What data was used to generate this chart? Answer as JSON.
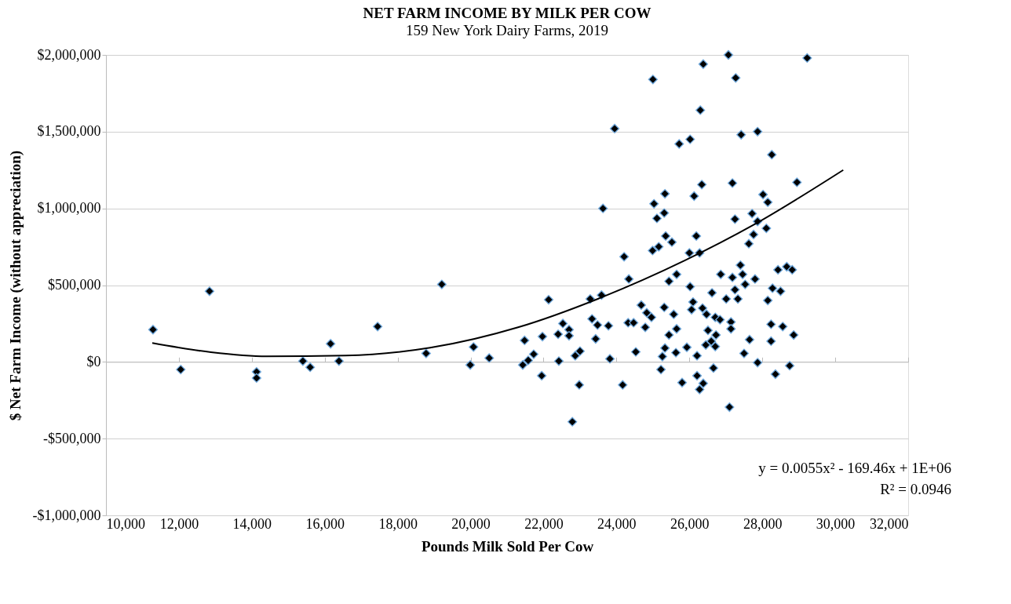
{
  "chart_data": {
    "type": "scatter",
    "title": "NET FARM INCOME BY MILK PER COW",
    "subtitle": "159 New York Dairy Farms, 2019",
    "xlabel": "Pounds Milk Sold Per Cow",
    "ylabel": "$ Net Farm Income (without appreciation)",
    "annotations": [
      "y = 0.0055x² - 169.46x + 1E+06",
      "R² = 0.0946"
    ],
    "xlim": [
      10000,
      32000
    ],
    "ylim": [
      -1000000,
      2000000
    ],
    "xticks": [
      {
        "value": 10000,
        "label": "10,000"
      },
      {
        "value": 12000,
        "label": "12,000"
      },
      {
        "value": 14000,
        "label": "14,000"
      },
      {
        "value": 16000,
        "label": "16,000"
      },
      {
        "value": 18000,
        "label": "18,000"
      },
      {
        "value": 20000,
        "label": "20,000"
      },
      {
        "value": 22000,
        "label": "22,000"
      },
      {
        "value": 24000,
        "label": "24,000"
      },
      {
        "value": 26000,
        "label": "26,000"
      },
      {
        "value": 28000,
        "label": "28,000"
      },
      {
        "value": 30000,
        "label": "30,000"
      },
      {
        "value": 32000,
        "label": "32,000"
      }
    ],
    "yticks": [
      {
        "value": -1000000,
        "label": "-$1,000,000"
      },
      {
        "value": -500000,
        "label": "-$500,000"
      },
      {
        "value": 0,
        "label": "$0"
      },
      {
        "value": 500000,
        "label": "$500,000"
      },
      {
        "value": 1000000,
        "label": "$1,000,000"
      },
      {
        "value": 1500000,
        "label": "$1,500,000"
      },
      {
        "value": 2000000,
        "label": "$2,000,000"
      }
    ],
    "grid": "y",
    "series": [
      {
        "marker": "diamond",
        "color": "#000000",
        "x": [
          11290,
          12050,
          12840,
          14130,
          14130,
          15400,
          15600,
          16160,
          16390,
          17450,
          18780,
          19210,
          19990,
          20080,
          20510,
          27070,
          29230,
          26380,
          25000,
          27270,
          26300,
          23950,
          27420,
          27870,
          25720,
          26020,
          28260,
          28950,
          27180,
          26340,
          25330,
          26130,
          28020,
          28150,
          23630,
          25030,
          25310,
          25110,
          27720,
          27250,
          27870,
          28110,
          27760,
          25350,
          25520,
          26190,
          27630,
          24990,
          25160,
          26000,
          26280,
          24210,
          24340,
          27400,
          26860,
          27180,
          27460,
          27800,
          27530,
          25650,
          25440,
          26020,
          26620,
          27010,
          27330,
          27250,
          28430,
          28670,
          28820,
          28280,
          28500,
          28150,
          22140,
          23280,
          23590,
          24680,
          25310,
          24830,
          24960,
          25570,
          26100,
          26060,
          26360,
          26470,
          26710,
          26840,
          27140,
          27140,
          26510,
          26730,
          26450,
          26600,
          26710,
          25650,
          25440,
          25330,
          25260,
          25630,
          25930,
          26210,
          27650,
          27500,
          28240,
          28560,
          28860,
          28240,
          27870,
          28360,
          28750,
          24320,
          24470,
          24790,
          24530,
          23820,
          24170,
          23330,
          23480,
          23780,
          23430,
          22530,
          22700,
          22400,
          22700,
          21970,
          21480,
          23000,
          22870,
          22420,
          21730,
          21580,
          21430,
          21950,
          22980,
          22790,
          25220,
          25800,
          26210,
          26280,
          26380,
          26660,
          27100
        ],
        "values": [
          210000,
          -50000,
          460000,
          -65000,
          -105000,
          5000,
          -35000,
          118000,
          5000,
          230000,
          55000,
          505000,
          -20000,
          97000,
          25000,
          2000000,
          1980000,
          1940000,
          1840000,
          1850000,
          1640000,
          1520000,
          1480000,
          1500000,
          1420000,
          1450000,
          1350000,
          1170000,
          1165000,
          1155000,
          1095000,
          1080000,
          1090000,
          1040000,
          1000000,
          1030000,
          970000,
          935000,
          966000,
          930000,
          915000,
          870000,
          830000,
          820000,
          780000,
          820000,
          770000,
          725000,
          750000,
          710000,
          710000,
          685000,
          540000,
          630000,
          570000,
          550000,
          570000,
          540000,
          505000,
          570000,
          525000,
          490000,
          450000,
          410000,
          410000,
          470000,
          600000,
          620000,
          600000,
          480000,
          460000,
          400000,
          405000,
          410000,
          435000,
          370000,
          355000,
          320000,
          290000,
          310000,
          390000,
          340000,
          350000,
          310000,
          290000,
          275000,
          260000,
          215000,
          205000,
          175000,
          110000,
          135000,
          100000,
          215000,
          175000,
          90000,
          35000,
          60000,
          95000,
          40000,
          145000,
          55000,
          245000,
          230000,
          175000,
          135000,
          -5000,
          -80000,
          -25000,
          255000,
          255000,
          225000,
          65000,
          20000,
          -150000,
          280000,
          240000,
          235000,
          150000,
          250000,
          210000,
          180000,
          170000,
          165000,
          140000,
          70000,
          40000,
          5000,
          50000,
          10000,
          -20000,
          -90000,
          -150000,
          -390000,
          -50000,
          -135000,
          -90000,
          -180000,
          -140000,
          -40000,
          -295000
        ]
      },
      {
        "type": "line",
        "marker": "none",
        "color": "#000000",
        "x": [
          11270,
          12880,
          14410,
          16570,
          18890,
          21300,
          23590,
          25870,
          27740,
          30220
        ],
        "values": [
          123000,
          63000,
          36000,
          41000,
          92000,
          225000,
          420000,
          660000,
          890000,
          1250000
        ]
      }
    ]
  }
}
